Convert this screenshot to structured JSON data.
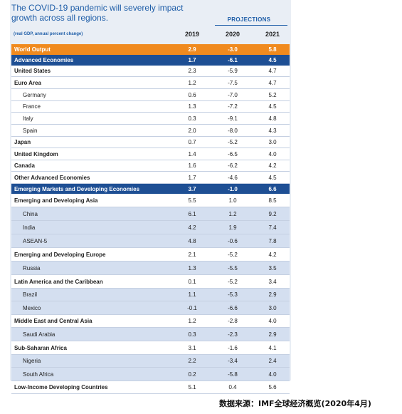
{
  "title": "The COVID-19 pandemic will severely impact growth across all regions.",
  "projections_label": "PROJECTIONS",
  "subtitle": "(real GDP, annual percent change)",
  "years": [
    "2019",
    "2020",
    "2021"
  ],
  "rows": [
    {
      "label": "World Output",
      "v": [
        "2.9",
        "-3.0",
        "5.8"
      ],
      "style": "world"
    },
    {
      "label": "Advanced Economies",
      "v": [
        "1.7",
        "-6.1",
        "4.5"
      ],
      "style": "adv"
    },
    {
      "label": "United States",
      "v": [
        "2.3",
        "-5.9",
        "4.7"
      ],
      "style": "bold"
    },
    {
      "label": "Euro Area",
      "v": [
        "1.2",
        "-7.5",
        "4.7"
      ],
      "style": "bold"
    },
    {
      "label": "Germany",
      "v": [
        "0.6",
        "-7.0",
        "5.2"
      ],
      "style": "sub"
    },
    {
      "label": "France",
      "v": [
        "1.3",
        "-7.2",
        "4.5"
      ],
      "style": "sub"
    },
    {
      "label": "Italy",
      "v": [
        "0.3",
        "-9.1",
        "4.8"
      ],
      "style": "sub"
    },
    {
      "label": "Spain",
      "v": [
        "2.0",
        "-8.0",
        "4.3"
      ],
      "style": "sub"
    },
    {
      "label": "Japan",
      "v": [
        "0.7",
        "-5.2",
        "3.0"
      ],
      "style": "bold"
    },
    {
      "label": "United Kingdom",
      "v": [
        "1.4",
        "-6.5",
        "4.0"
      ],
      "style": "bold"
    },
    {
      "label": "Canada",
      "v": [
        "1.6",
        "-6.2",
        "4.2"
      ],
      "style": "bold"
    },
    {
      "label": "Other Advanced Economies",
      "v": [
        "1.7",
        "-4.6",
        "4.5"
      ],
      "style": "bold"
    },
    {
      "label": "Emerging Markets and Developing Economies",
      "v": [
        "3.7",
        "-1.0",
        "6.6"
      ],
      "style": "emdev"
    },
    {
      "label": "Emerging and Developing Asia",
      "v": [
        "5.5",
        "1.0",
        "8.5"
      ],
      "style": "bold"
    },
    {
      "label": "China",
      "v": [
        "6.1",
        "1.2",
        "9.2"
      ],
      "style": "sub"
    },
    {
      "label": "India",
      "v": [
        "4.2",
        "1.9",
        "7.4"
      ],
      "style": "sub"
    },
    {
      "label": "ASEAN-5",
      "v": [
        "4.8",
        "-0.6",
        "7.8"
      ],
      "style": "sub"
    },
    {
      "label": "Emerging and Developing Europe",
      "v": [
        "2.1",
        "-5.2",
        "4.2"
      ],
      "style": "bold"
    },
    {
      "label": "Russia",
      "v": [
        "1.3",
        "-5.5",
        "3.5"
      ],
      "style": "sub"
    },
    {
      "label": "Latin America and the Caribbean",
      "v": [
        "0.1",
        "-5.2",
        "3.4"
      ],
      "style": "bold"
    },
    {
      "label": "Brazil",
      "v": [
        "1.1",
        "-5.3",
        "2.9"
      ],
      "style": "sub"
    },
    {
      "label": "Mexico",
      "v": [
        "-0.1",
        "-6.6",
        "3.0"
      ],
      "style": "sub"
    },
    {
      "label": "Middle East and Central Asia",
      "v": [
        "1.2",
        "-2.8",
        "4.0"
      ],
      "style": "bold"
    },
    {
      "label": "Saudi Arabia",
      "v": [
        "0.3",
        "-2.3",
        "2.9"
      ],
      "style": "sub"
    },
    {
      "label": "Sub-Saharan Africa",
      "v": [
        "3.1",
        "-1.6",
        "4.1"
      ],
      "style": "bold"
    },
    {
      "label": "Nigeria",
      "v": [
        "2.2",
        "-3.4",
        "2.4"
      ],
      "style": "sub"
    },
    {
      "label": "South Africa",
      "v": [
        "0.2",
        "-5.8",
        "4.0"
      ],
      "style": "sub"
    },
    {
      "label": "Low-Income Developing Countries",
      "v": [
        "5.1",
        "0.4",
        "5.6"
      ],
      "style": "bold"
    }
  ],
  "source": "数据来源：IMF全球经济概览(2020年4月)"
}
